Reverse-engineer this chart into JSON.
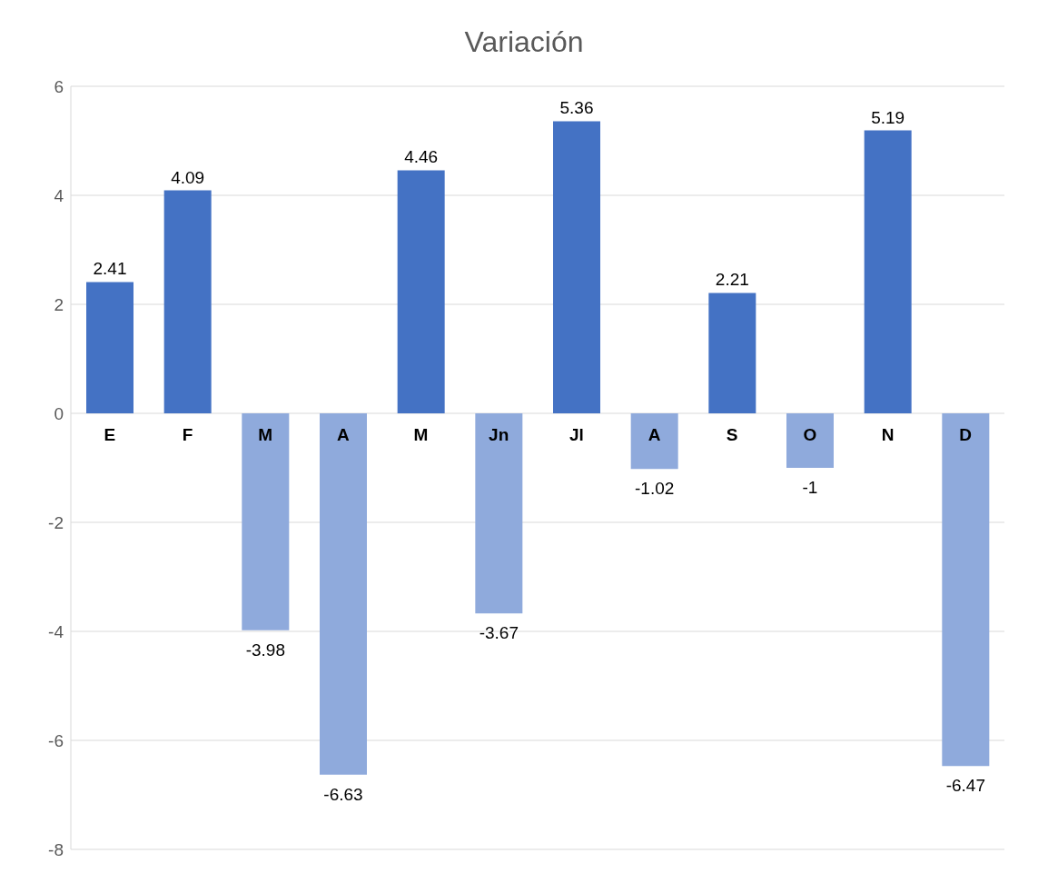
{
  "chart_data": {
    "type": "bar",
    "title": "Variación",
    "categories": [
      "E",
      "F",
      "M",
      "A",
      "M",
      "Jn",
      "Jl",
      "A",
      "S",
      "O",
      "N",
      "D"
    ],
    "values": [
      2.41,
      4.09,
      -3.98,
      -6.63,
      4.46,
      -3.67,
      5.36,
      -1.02,
      2.21,
      -1,
      5.19,
      -6.47
    ],
    "colors": [
      "#4472c4",
      "#4472c4",
      "#8faadc",
      "#8faadc",
      "#4472c4",
      "#8faadc",
      "#4472c4",
      "#8faadc",
      "#4472c4",
      "#8faadc",
      "#4472c4",
      "#8faadc"
    ],
    "ylim": [
      -8,
      6
    ],
    "yticks": [
      -8,
      -6,
      -4,
      -2,
      0,
      2,
      4,
      6
    ],
    "grid": "y",
    "data_labels": true
  }
}
